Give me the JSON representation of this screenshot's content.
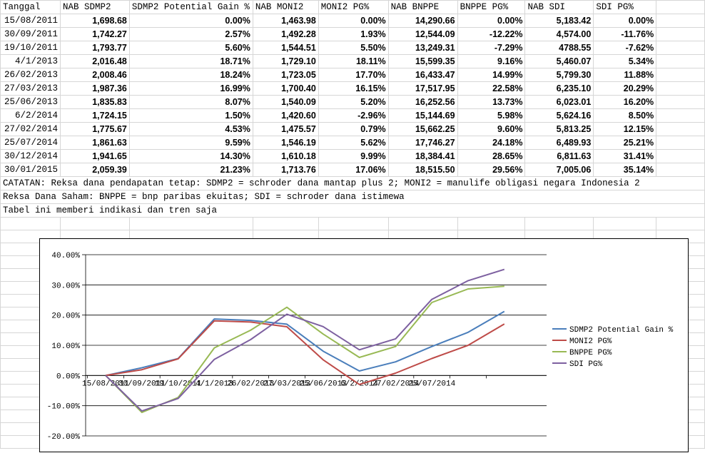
{
  "table": {
    "headers": [
      "Tanggal",
      "NAB SDMP2",
      "SDMP2 Potential Gain %",
      "NAB MONI2",
      "MONI2 PG%",
      "NAB BNPPE",
      "BNPPE PG%",
      "NAB SDI",
      "SDI PG%"
    ],
    "rows": [
      [
        "15/08/2011",
        "1,698.68",
        "0.00%",
        "1,463.98",
        "0.00%",
        "14,290.66",
        "0.00%",
        "5,183.42",
        "0.00%"
      ],
      [
        "30/09/2011",
        "1,742.27",
        "2.57%",
        "1,492.28",
        "1.93%",
        "12,544.09",
        "-12.22%",
        "4,574.00",
        "-11.76%"
      ],
      [
        "19/10/2011",
        "1,793.77",
        "5.60%",
        "1,544.51",
        "5.50%",
        "13,249.31",
        "-7.29%",
        "4788.55",
        "-7.62%"
      ],
      [
        "4/1/2013",
        "2,016.48",
        "18.71%",
        "1,729.10",
        "18.11%",
        "15,599.35",
        "9.16%",
        "5,460.07",
        "5.34%"
      ],
      [
        "26/02/2013",
        "2,008.46",
        "18.24%",
        "1,723.05",
        "17.70%",
        "16,433.47",
        "14.99%",
        "5,799.30",
        "11.88%"
      ],
      [
        "27/03/2013",
        "1,987.36",
        "16.99%",
        "1,700.40",
        "16.15%",
        "17,517.95",
        "22.58%",
        "6,235.10",
        "20.29%"
      ],
      [
        "25/06/2013",
        "1,835.83",
        "8.07%",
        "1,540.09",
        "5.20%",
        "16,252.56",
        "13.73%",
        "6,023.01",
        "16.20%"
      ],
      [
        "6/2/2014",
        "1,724.15",
        "1.50%",
        "1,420.60",
        "-2.96%",
        "15,144.69",
        "5.98%",
        "5,624.16",
        "8.50%"
      ],
      [
        "27/02/2014",
        "1,775.67",
        "4.53%",
        "1,475.57",
        "0.79%",
        "15,662.25",
        "9.60%",
        "5,813.25",
        "12.15%"
      ],
      [
        "25/07/2014",
        "1,861.63",
        "9.59%",
        "1,546.19",
        "5.62%",
        "17,746.27",
        "24.18%",
        "6,489.93",
        "25.21%"
      ],
      [
        "30/12/2014",
        "1,941.65",
        "14.30%",
        "1,610.18",
        "9.99%",
        "18,384.41",
        "28.65%",
        "6,811.63",
        "31.41%"
      ],
      [
        "30/01/2015",
        "2,059.39",
        "21.23%",
        "1,713.76",
        "17.06%",
        "18,515.50",
        "29.56%",
        "7,005.06",
        "35.14%"
      ]
    ]
  },
  "notes": [
    "CATATAN: Reksa dana pendapatan tetap: SDMP2 = schroder dana mantap plus 2; MONI2 = manulife obligasi negara Indonesia 2",
    "Reksa Dana Saham: BNPPE = bnp paribas ekuitas; SDI = schroder dana istimewa",
    "Tabel ini memberi indikasi dan tren saja"
  ],
  "chart_data": {
    "type": "line",
    "x": [
      "15/08/2011",
      "30/09/2011",
      "19/10/2011",
      "4/1/2013",
      "26/02/2013",
      "27/03/2013",
      "25/06/2013",
      "6/2/2014",
      "27/02/2014",
      "25/07/2014",
      "30/12/2014",
      "30/01/2015"
    ],
    "x_tick_labels": [
      "15/08/2011",
      "30/09/2011",
      "19/10/2011",
      "4/1/2013",
      "26/02/2013",
      "27/03/2013",
      "25/06/2013",
      "6/2/2014",
      "27/02/2014",
      "25/07/2014"
    ],
    "y_ticks": [
      "40.00%",
      "30.00%",
      "20.00%",
      "10.00%",
      "0.00%",
      "-10.00%",
      "-20.00%"
    ],
    "ylim": [
      -20,
      40
    ],
    "grid": "horizontal",
    "legend_position": "right",
    "series": [
      {
        "name": "SDMP2 Potential Gain %",
        "color": "#4a7ebb",
        "values": [
          0.0,
          2.57,
          5.6,
          18.71,
          18.24,
          16.99,
          8.07,
          1.5,
          4.53,
          9.59,
          14.3,
          21.23
        ]
      },
      {
        "name": "MONI2 PG%",
        "color": "#be4b48",
        "values": [
          0.0,
          1.93,
          5.5,
          18.11,
          17.7,
          16.15,
          5.2,
          -2.96,
          0.79,
          5.62,
          9.99,
          17.06
        ]
      },
      {
        "name": "BNPPE PG%",
        "color": "#98b954",
        "values": [
          0.0,
          -12.22,
          -7.29,
          9.16,
          14.99,
          22.58,
          13.73,
          5.98,
          9.6,
          24.18,
          28.65,
          29.56
        ]
      },
      {
        "name": "SDI PG%",
        "color": "#7d60a0",
        "values": [
          0.0,
          -11.76,
          -7.62,
          5.34,
          11.88,
          20.29,
          16.2,
          8.5,
          12.15,
          25.21,
          31.41,
          35.14
        ]
      }
    ]
  }
}
